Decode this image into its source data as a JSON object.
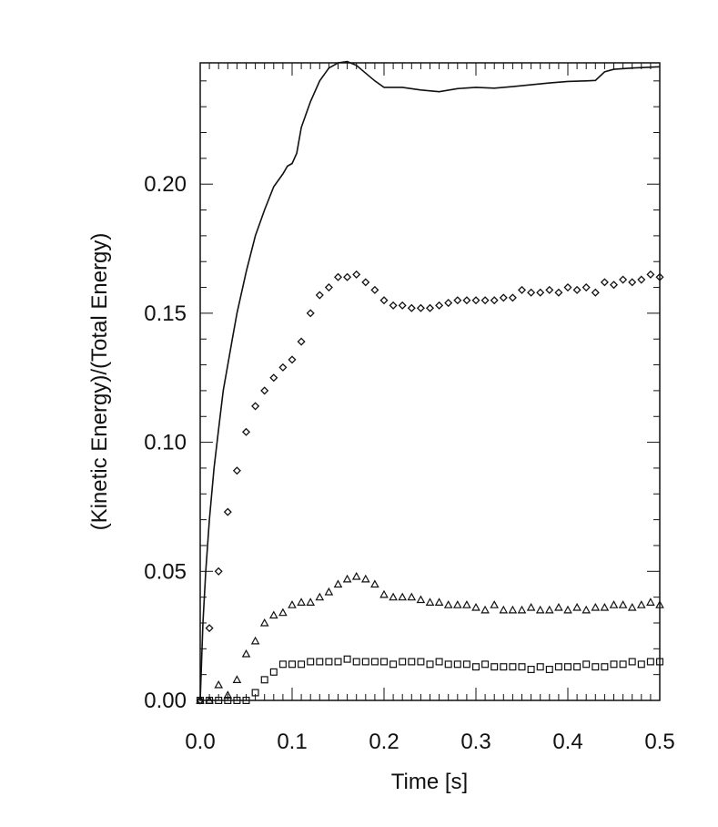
{
  "chart_data": {
    "type": "scatter",
    "xlabel": "Time [s]",
    "ylabel": "(Kinetic Energy)/(Total Energy)",
    "xlim": [
      0.0,
      0.5
    ],
    "ylim": [
      0.0,
      0.247
    ],
    "x_ticks": [
      "0.0",
      "0.1",
      "0.2",
      "0.3",
      "0.4",
      "0.5"
    ],
    "y_ticks": [
      "0.00",
      "0.05",
      "0.10",
      "0.15",
      "0.20"
    ],
    "grid": false,
    "legend": "none",
    "series": [
      {
        "marker": "line",
        "points": [
          [
            0.0,
            0.0
          ],
          [
            0.003,
            0.03
          ],
          [
            0.006,
            0.05
          ],
          [
            0.01,
            0.07
          ],
          [
            0.015,
            0.09
          ],
          [
            0.02,
            0.105
          ],
          [
            0.025,
            0.12
          ],
          [
            0.03,
            0.13
          ],
          [
            0.035,
            0.14
          ],
          [
            0.04,
            0.15
          ],
          [
            0.05,
            0.166
          ],
          [
            0.06,
            0.18
          ],
          [
            0.07,
            0.19
          ],
          [
            0.08,
            0.199
          ],
          [
            0.09,
            0.204
          ],
          [
            0.095,
            0.207
          ],
          [
            0.1,
            0.208
          ],
          [
            0.105,
            0.212
          ],
          [
            0.11,
            0.222
          ],
          [
            0.12,
            0.232
          ],
          [
            0.13,
            0.24
          ],
          [
            0.14,
            0.245
          ],
          [
            0.15,
            0.247
          ],
          [
            0.16,
            0.2475
          ],
          [
            0.17,
            0.246
          ],
          [
            0.18,
            0.243
          ],
          [
            0.19,
            0.24
          ],
          [
            0.2,
            0.2375
          ],
          [
            0.22,
            0.2375
          ],
          [
            0.24,
            0.2365
          ],
          [
            0.26,
            0.2358
          ],
          [
            0.28,
            0.237
          ],
          [
            0.3,
            0.2375
          ],
          [
            0.32,
            0.2372
          ],
          [
            0.34,
            0.2378
          ],
          [
            0.36,
            0.2385
          ],
          [
            0.38,
            0.2392
          ],
          [
            0.4,
            0.2398
          ],
          [
            0.42,
            0.24
          ],
          [
            0.43,
            0.2402
          ],
          [
            0.44,
            0.2435
          ],
          [
            0.45,
            0.2445
          ],
          [
            0.47,
            0.245
          ],
          [
            0.5,
            0.2455
          ]
        ]
      },
      {
        "marker": "diamond",
        "points": [
          [
            0.0,
            0.0
          ],
          [
            0.01,
            0.028
          ],
          [
            0.02,
            0.05
          ],
          [
            0.03,
            0.073
          ],
          [
            0.04,
            0.089
          ],
          [
            0.05,
            0.104
          ],
          [
            0.06,
            0.114
          ],
          [
            0.07,
            0.12
          ],
          [
            0.08,
            0.125
          ],
          [
            0.09,
            0.129
          ],
          [
            0.1,
            0.132
          ],
          [
            0.11,
            0.139
          ],
          [
            0.12,
            0.15
          ],
          [
            0.13,
            0.157
          ],
          [
            0.14,
            0.16
          ],
          [
            0.15,
            0.164
          ],
          [
            0.16,
            0.164
          ],
          [
            0.17,
            0.165
          ],
          [
            0.18,
            0.162
          ],
          [
            0.19,
            0.159
          ],
          [
            0.2,
            0.155
          ],
          [
            0.21,
            0.153
          ],
          [
            0.22,
            0.153
          ],
          [
            0.23,
            0.152
          ],
          [
            0.24,
            0.152
          ],
          [
            0.25,
            0.152
          ],
          [
            0.26,
            0.153
          ],
          [
            0.27,
            0.154
          ],
          [
            0.28,
            0.155
          ],
          [
            0.29,
            0.155
          ],
          [
            0.3,
            0.155
          ],
          [
            0.31,
            0.155
          ],
          [
            0.32,
            0.155
          ],
          [
            0.33,
            0.156
          ],
          [
            0.34,
            0.156
          ],
          [
            0.35,
            0.159
          ],
          [
            0.36,
            0.158
          ],
          [
            0.37,
            0.158
          ],
          [
            0.38,
            0.159
          ],
          [
            0.39,
            0.158
          ],
          [
            0.4,
            0.16
          ],
          [
            0.41,
            0.159
          ],
          [
            0.42,
            0.16
          ],
          [
            0.43,
            0.158
          ],
          [
            0.44,
            0.162
          ],
          [
            0.45,
            0.161
          ],
          [
            0.46,
            0.163
          ],
          [
            0.47,
            0.162
          ],
          [
            0.48,
            0.163
          ],
          [
            0.49,
            0.165
          ],
          [
            0.5,
            0.164
          ]
        ]
      },
      {
        "marker": "triangle",
        "points": [
          [
            0.0,
            0.0
          ],
          [
            0.01,
            0.0
          ],
          [
            0.02,
            0.006
          ],
          [
            0.03,
            0.002
          ],
          [
            0.04,
            0.008
          ],
          [
            0.05,
            0.018
          ],
          [
            0.06,
            0.023
          ],
          [
            0.07,
            0.03
          ],
          [
            0.08,
            0.033
          ],
          [
            0.09,
            0.034
          ],
          [
            0.1,
            0.037
          ],
          [
            0.11,
            0.038
          ],
          [
            0.12,
            0.038
          ],
          [
            0.13,
            0.04
          ],
          [
            0.14,
            0.042
          ],
          [
            0.15,
            0.045
          ],
          [
            0.16,
            0.047
          ],
          [
            0.17,
            0.048
          ],
          [
            0.18,
            0.047
          ],
          [
            0.19,
            0.045
          ],
          [
            0.2,
            0.041
          ],
          [
            0.21,
            0.04
          ],
          [
            0.22,
            0.04
          ],
          [
            0.23,
            0.04
          ],
          [
            0.24,
            0.039
          ],
          [
            0.25,
            0.038
          ],
          [
            0.26,
            0.038
          ],
          [
            0.27,
            0.037
          ],
          [
            0.28,
            0.037
          ],
          [
            0.29,
            0.037
          ],
          [
            0.3,
            0.036
          ],
          [
            0.31,
            0.035
          ],
          [
            0.32,
            0.037
          ],
          [
            0.33,
            0.035
          ],
          [
            0.34,
            0.035
          ],
          [
            0.35,
            0.035
          ],
          [
            0.36,
            0.036
          ],
          [
            0.37,
            0.035
          ],
          [
            0.38,
            0.035
          ],
          [
            0.39,
            0.036
          ],
          [
            0.4,
            0.035
          ],
          [
            0.41,
            0.036
          ],
          [
            0.42,
            0.035
          ],
          [
            0.43,
            0.036
          ],
          [
            0.44,
            0.036
          ],
          [
            0.45,
            0.037
          ],
          [
            0.46,
            0.037
          ],
          [
            0.47,
            0.036
          ],
          [
            0.48,
            0.037
          ],
          [
            0.49,
            0.038
          ],
          [
            0.5,
            0.037
          ]
        ]
      },
      {
        "marker": "square",
        "points": [
          [
            0.0,
            0.0
          ],
          [
            0.01,
            0.0
          ],
          [
            0.02,
            0.0
          ],
          [
            0.03,
            0.0
          ],
          [
            0.04,
            0.0
          ],
          [
            0.05,
            0.0
          ],
          [
            0.06,
            0.003
          ],
          [
            0.07,
            0.008
          ],
          [
            0.08,
            0.011
          ],
          [
            0.09,
            0.014
          ],
          [
            0.1,
            0.014
          ],
          [
            0.11,
            0.014
          ],
          [
            0.12,
            0.015
          ],
          [
            0.13,
            0.015
          ],
          [
            0.14,
            0.015
          ],
          [
            0.15,
            0.015
          ],
          [
            0.16,
            0.016
          ],
          [
            0.17,
            0.015
          ],
          [
            0.18,
            0.015
          ],
          [
            0.19,
            0.015
          ],
          [
            0.2,
            0.015
          ],
          [
            0.21,
            0.014
          ],
          [
            0.22,
            0.015
          ],
          [
            0.23,
            0.015
          ],
          [
            0.24,
            0.015
          ],
          [
            0.25,
            0.014
          ],
          [
            0.26,
            0.015
          ],
          [
            0.27,
            0.014
          ],
          [
            0.28,
            0.014
          ],
          [
            0.29,
            0.014
          ],
          [
            0.3,
            0.013
          ],
          [
            0.31,
            0.014
          ],
          [
            0.32,
            0.013
          ],
          [
            0.33,
            0.013
          ],
          [
            0.34,
            0.013
          ],
          [
            0.35,
            0.013
          ],
          [
            0.36,
            0.012
          ],
          [
            0.37,
            0.013
          ],
          [
            0.38,
            0.012
          ],
          [
            0.39,
            0.013
          ],
          [
            0.4,
            0.013
          ],
          [
            0.41,
            0.013
          ],
          [
            0.42,
            0.014
          ],
          [
            0.43,
            0.013
          ],
          [
            0.44,
            0.013
          ],
          [
            0.45,
            0.014
          ],
          [
            0.46,
            0.014
          ],
          [
            0.47,
            0.015
          ],
          [
            0.48,
            0.014
          ],
          [
            0.49,
            0.015
          ],
          [
            0.5,
            0.015
          ]
        ]
      }
    ]
  }
}
